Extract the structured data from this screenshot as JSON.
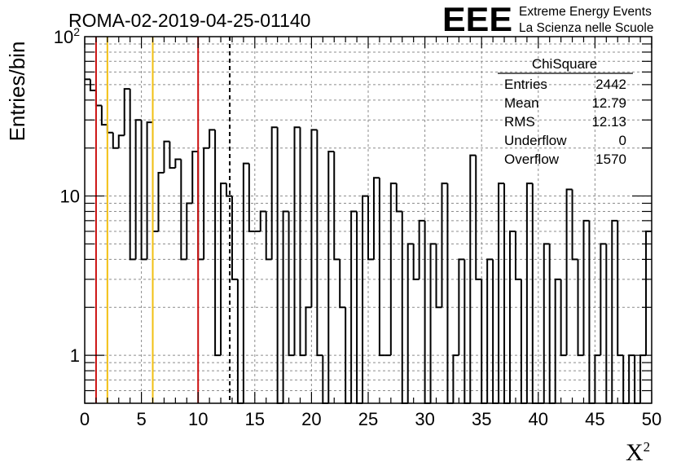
{
  "title": "ROMA-02-2019-04-25-01140",
  "logo": {
    "mark": "EEE",
    "line1": "Extreme Energy Events",
    "line2": "La Scienza nelle Scuole",
    "color": "#1c1cf0"
  },
  "stats": {
    "name": "ChiSquare",
    "rows": [
      {
        "label": "Entries",
        "value": "2442"
      },
      {
        "label": "Mean",
        "value": "12.79"
      },
      {
        "label": "RMS",
        "value": "12.13"
      },
      {
        "label": "Underflow",
        "value": "0"
      },
      {
        "label": "Overflow",
        "value": "1570"
      }
    ]
  },
  "chart_data": {
    "type": "bar",
    "histogram": true,
    "xlabel": "X",
    "xlabel_sup": "2",
    "ylabel": "Entries/bin",
    "xlim": [
      0,
      50
    ],
    "ylim": [
      0.5,
      100
    ],
    "ylog": true,
    "grid": true,
    "bin_width": 0.5,
    "x_ticks": [
      "0",
      "5",
      "10",
      "15",
      "20",
      "25",
      "30",
      "35",
      "40",
      "45",
      "50"
    ],
    "y_ticks": [
      {
        "value": 1,
        "label": "1"
      },
      {
        "value": 10,
        "label": "10"
      },
      {
        "value": 100,
        "label": "10",
        "sup": "2"
      }
    ],
    "bin_lows": [
      0,
      0.5,
      1,
      1.5,
      2,
      2.5,
      3,
      3.5,
      4,
      4.5,
      5,
      5.5,
      6,
      6.5,
      7,
      7.5,
      8,
      8.5,
      9,
      9.5,
      10,
      10.5,
      11,
      11.5,
      12,
      12.5,
      13,
      13.5,
      14,
      14.5,
      15,
      15.5,
      16,
      16.5,
      17,
      17.5,
      18,
      18.5,
      19,
      19.5,
      20,
      20.5,
      21,
      21.5,
      22,
      22.5,
      23,
      23.5,
      24,
      24.5,
      25,
      25.5,
      26,
      26.5,
      27,
      27.5,
      28,
      28.5,
      29,
      29.5,
      30,
      30.5,
      31,
      31.5,
      32,
      32.5,
      33,
      33.5,
      34,
      34.5,
      35,
      35.5,
      36,
      36.5,
      37,
      37.5,
      38,
      38.5,
      39,
      39.5,
      40,
      40.5,
      41,
      41.5,
      42,
      42.5,
      43,
      43.5,
      44,
      44.5,
      45,
      45.5,
      46,
      46.5,
      47,
      47.5,
      48,
      48.5,
      49,
      49.5
    ],
    "values": [
      54,
      46,
      37,
      28,
      25,
      20,
      24,
      47,
      4,
      30,
      4,
      29,
      6,
      14,
      22,
      15,
      17,
      4,
      9,
      19,
      4,
      20,
      26,
      1,
      12,
      10,
      3,
      0,
      16,
      6,
      6,
      8,
      4,
      27,
      0,
      8,
      1,
      27,
      1,
      2,
      26,
      1,
      0,
      19,
      4,
      2,
      0,
      8,
      0,
      10,
      4,
      13,
      1,
      1,
      12,
      8,
      0,
      5,
      3,
      7,
      0,
      5,
      2,
      12,
      0,
      1,
      4,
      0,
      18,
      3,
      0,
      4,
      0,
      12,
      0,
      6,
      3,
      0,
      12,
      0,
      0,
      5,
      0,
      3,
      1,
      11,
      4,
      1,
      7,
      0,
      1,
      5,
      0,
      7,
      1,
      0,
      1,
      0,
      1,
      6
    ],
    "vlines": [
      {
        "x": 1,
        "color": "#cc1111",
        "style": "solid"
      },
      {
        "x": 2,
        "color": "#f2c012",
        "style": "solid"
      },
      {
        "x": 6,
        "color": "#f2c012",
        "style": "solid"
      },
      {
        "x": 10,
        "color": "#cc1111",
        "style": "solid"
      },
      {
        "x": 12.79,
        "color": "#000000",
        "style": "dashed"
      }
    ]
  }
}
